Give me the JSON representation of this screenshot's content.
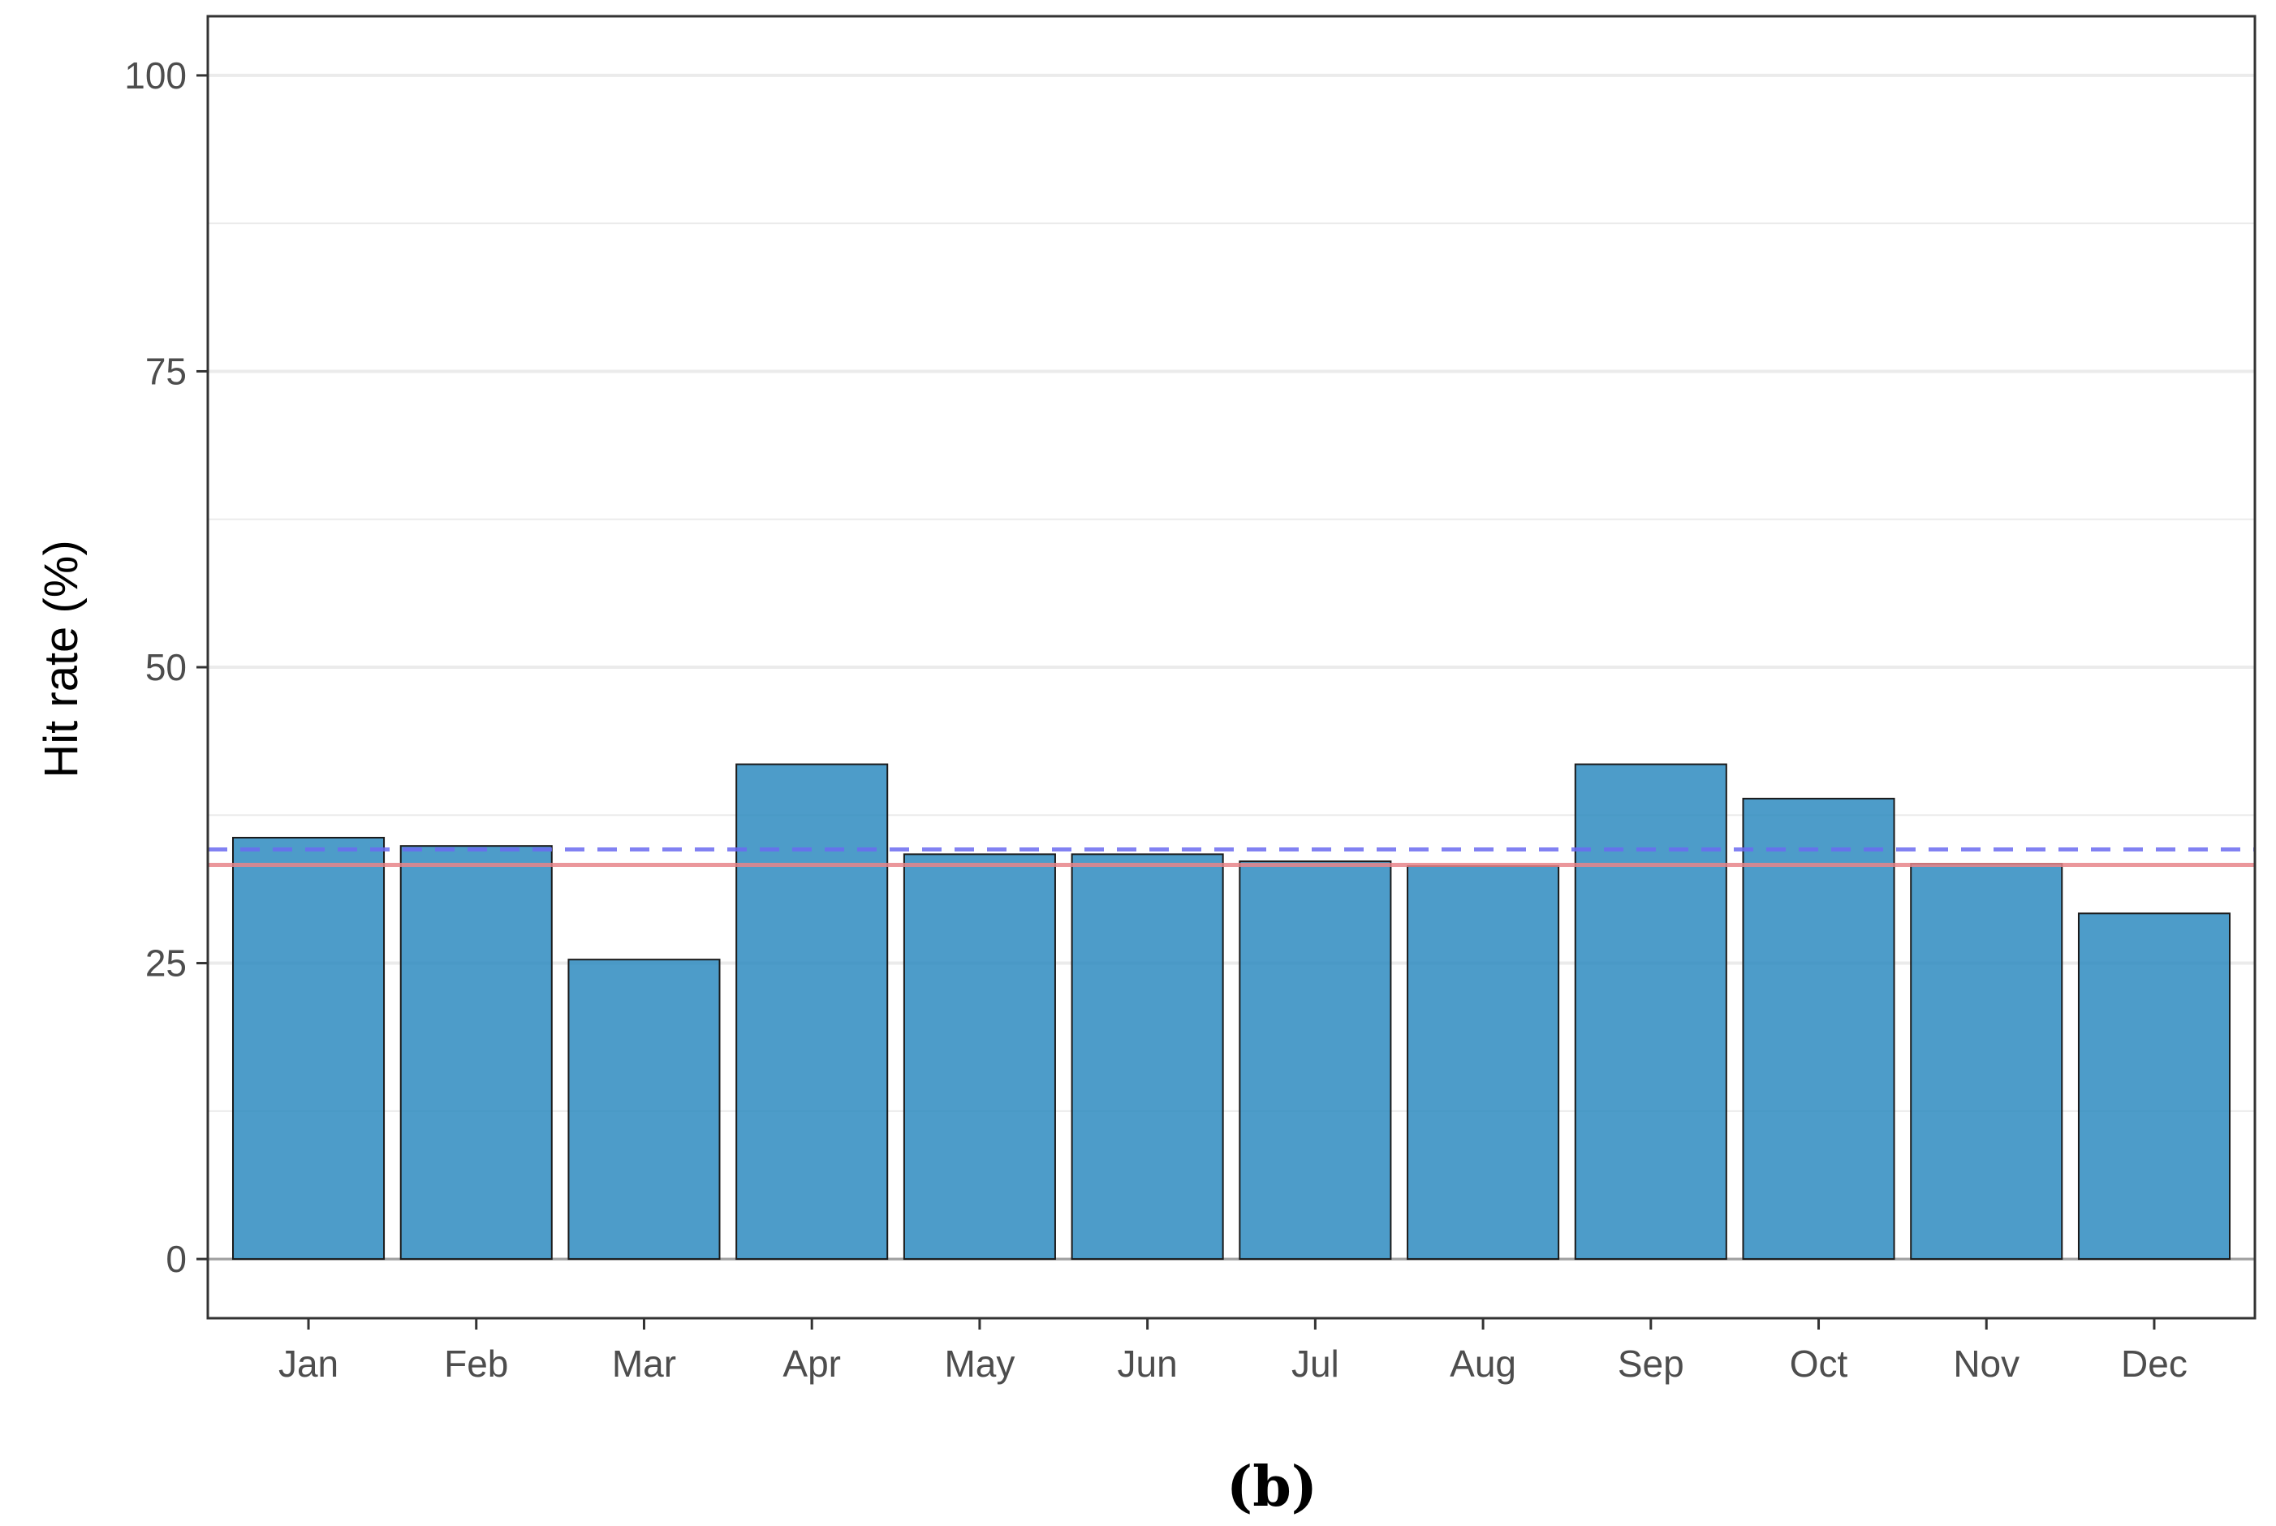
{
  "caption": "(b)",
  "colors": {
    "bar_fill": "#2e8bbf",
    "bar_stroke": "#1a1a1a",
    "mean_line": "#e8858a",
    "reference_line": "#6b6bf0",
    "grid": "#ebebeb"
  },
  "chart_data": {
    "type": "bar",
    "categories": [
      "Jan",
      "Feb",
      "Mar",
      "Apr",
      "May",
      "Jun",
      "Jul",
      "Aug",
      "Sep",
      "Oct",
      "Nov",
      "Dec"
    ],
    "values": [
      35.6,
      34.9,
      25.3,
      41.8,
      34.2,
      34.2,
      33.6,
      33.2,
      41.8,
      38.9,
      33.4,
      29.2
    ],
    "xlabel": "",
    "ylabel": "Hit rate (%)",
    "ylim": [
      -5,
      105
    ],
    "yticks": [
      0,
      25,
      50,
      75,
      100
    ],
    "grid": true,
    "hlines": [
      {
        "value": 33.3,
        "style": "solid",
        "color": "#e8858a"
      },
      {
        "value": 34.6,
        "style": "dashed",
        "color": "#6b6bf0"
      }
    ]
  }
}
